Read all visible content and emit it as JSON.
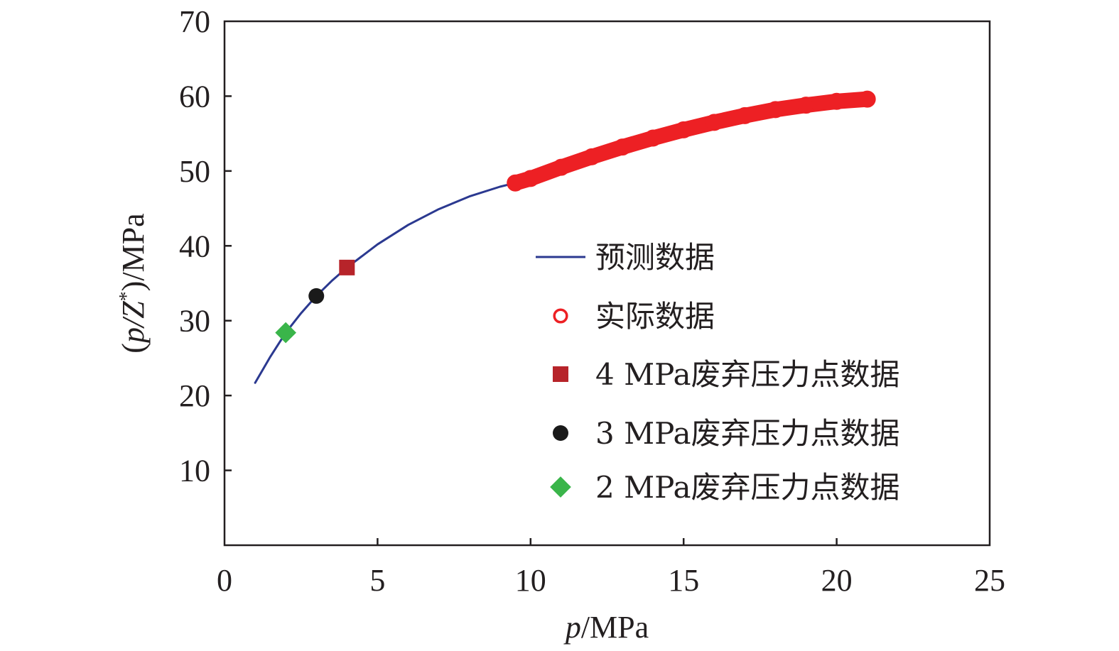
{
  "chart_data": {
    "type": "line",
    "title": "",
    "xlabel": {
      "italic": "p",
      "rest": "/MPa"
    },
    "ylabel": {
      "open": "(",
      "italic": "p/Z",
      "sup": "*",
      "rest": ")/MPa"
    },
    "xlim": [
      0,
      25
    ],
    "ylim": [
      0,
      70
    ],
    "x_ticks": [
      "0",
      "5",
      "10",
      "15",
      "20",
      "25"
    ],
    "y_ticks": [
      "10",
      "20",
      "30",
      "40",
      "50",
      "60",
      "70"
    ],
    "grid": false,
    "legend_position": "right",
    "colors": {
      "predicted": "#2b3990",
      "actual": "#ed2024",
      "abandon_4": "#b7242a",
      "abandon_3": "#1a1a1a",
      "abandon_2": "#3ab54a"
    },
    "series": [
      {
        "name": "预测数据",
        "kind": "line",
        "x": [
          1.0,
          1.5,
          2.0,
          2.5,
          3.0,
          3.5,
          4.0,
          5.0,
          6.0,
          7.0,
          8.0,
          9.0,
          9.5
        ],
        "y": [
          21.7,
          25.2,
          28.4,
          31.0,
          33.3,
          35.3,
          37.1,
          40.2,
          42.8,
          44.9,
          46.6,
          47.9,
          48.4
        ]
      },
      {
        "name": "实际数据",
        "kind": "markers",
        "marker": "open-circle",
        "x": [
          9.5,
          10,
          11,
          12,
          13,
          14,
          15,
          16,
          17,
          18,
          19,
          20,
          21
        ],
        "y": [
          48.4,
          49.0,
          50.5,
          51.9,
          53.2,
          54.4,
          55.5,
          56.5,
          57.4,
          58.2,
          58.8,
          59.3,
          59.6
        ]
      },
      {
        "name": "4 MPa废弃压力点数据",
        "kind": "point",
        "marker": "square",
        "x": [
          4.0
        ],
        "y": [
          37.1
        ]
      },
      {
        "name": "3 MPa废弃压力点数据",
        "kind": "point",
        "marker": "filled-circle",
        "x": [
          3.0
        ],
        "y": [
          33.3
        ]
      },
      {
        "name": "2 MPa废弃压力点数据",
        "kind": "point",
        "marker": "diamond",
        "x": [
          2.0
        ],
        "y": [
          28.4
        ]
      }
    ]
  }
}
